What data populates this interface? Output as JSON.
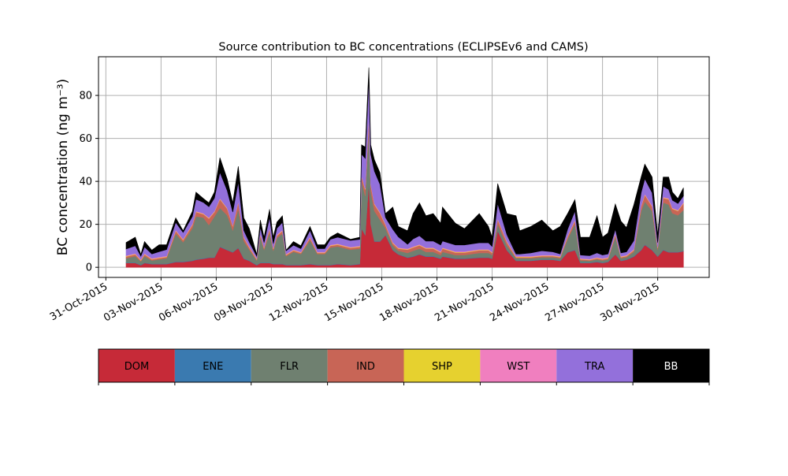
{
  "chart_data": {
    "type": "area",
    "stacked": true,
    "title": "Source contribution to BC concentrations (ECLIPSEv6 and CAMS)",
    "ylabel": "BC concentration (ng m⁻³)",
    "xlabel": "",
    "x_unit": "days since 31-Oct-2015",
    "xlim": [
      -0.4,
      32.8
    ],
    "ylim": [
      -4.7,
      98
    ],
    "grid": true,
    "y_ticks": [
      0,
      20,
      40,
      60,
      80
    ],
    "x_ticks": [
      {
        "day": 0,
        "label": "31-Oct-2015"
      },
      {
        "day": 3,
        "label": "03-Nov-2015"
      },
      {
        "day": 6,
        "label": "06-Nov-2015"
      },
      {
        "day": 9,
        "label": "09-Nov-2015"
      },
      {
        "day": 12,
        "label": "12-Nov-2015"
      },
      {
        "day": 15,
        "label": "15-Nov-2015"
      },
      {
        "day": 18,
        "label": "18-Nov-2015"
      },
      {
        "day": 21,
        "label": "21-Nov-2015"
      },
      {
        "day": 24,
        "label": "24-Nov-2015"
      },
      {
        "day": 27,
        "label": "27-Nov-2015"
      },
      {
        "day": 30,
        "label": "30-Nov-2015"
      }
    ],
    "x": [
      1.1,
      1.6,
      1.9,
      2.1,
      2.5,
      2.9,
      3.3,
      3.8,
      4.2,
      4.7,
      4.9,
      5.3,
      5.6,
      5.9,
      6.2,
      6.6,
      6.9,
      7.2,
      7.5,
      7.8,
      8.2,
      8.4,
      8.6,
      8.9,
      9.1,
      9.3,
      9.6,
      9.8,
      10.2,
      10.6,
      11.1,
      11.5,
      11.9,
      12.2,
      12.6,
      13.3,
      13.8,
      13.9,
      14.1,
      14.3,
      14.4,
      14.6,
      14.9,
      15.2,
      15.6,
      15.9,
      16.4,
      16.7,
      17.05,
      17.4,
      17.8,
      18.2,
      18.3,
      19.0,
      19.5,
      20.3,
      20.8,
      21.0,
      21.3,
      21.8,
      22.3,
      22.5,
      23.1,
      23.7,
      24.3,
      24.7,
      25.1,
      25.5,
      25.8,
      26.3,
      26.7,
      27.0,
      27.3,
      27.7,
      28.0,
      28.3,
      28.7,
      29.1,
      29.3,
      29.7,
      30.0,
      30.3,
      30.6,
      30.8,
      31.1,
      31.4
    ],
    "series": [
      {
        "name": "DOM",
        "color": "#c62a38",
        "values": [
          2,
          2,
          1,
          2,
          1.5,
          1.5,
          1.5,
          2.5,
          2.5,
          3,
          3.5,
          4,
          4.5,
          4.5,
          9.5,
          8,
          7,
          9,
          4,
          3,
          1,
          2,
          2,
          2,
          1.5,
          1.5,
          1.5,
          1,
          1,
          1,
          1.5,
          1,
          1,
          1,
          1.5,
          1,
          1.5,
          18,
          15,
          40,
          20,
          12,
          12,
          15,
          8,
          6,
          4.5,
          5,
          6,
          5,
          5,
          4,
          5,
          4,
          4,
          4.5,
          4.5,
          4,
          17,
          8,
          3,
          3,
          3,
          3.5,
          3.5,
          3,
          7,
          8,
          2,
          2,
          2.5,
          2,
          2.5,
          6,
          3,
          3.5,
          5,
          8,
          10.5,
          8,
          5,
          8,
          7,
          7,
          7,
          7.5
        ]
      },
      {
        "name": "ENE",
        "color": "#3a7ab0",
        "values": [
          0.2,
          0.2,
          0.2,
          0.2,
          0.2,
          0.2,
          0.2,
          0.2,
          0.2,
          0.2,
          0.2,
          0.2,
          0.2,
          0.2,
          0.2,
          0.2,
          0.2,
          0.2,
          0.2,
          0.2,
          0.2,
          0.2,
          0.2,
          0.2,
          0.2,
          0.2,
          0.2,
          0.2,
          0.2,
          0.2,
          0.2,
          0.2,
          0.2,
          0.2,
          0.2,
          0.2,
          0.2,
          0.2,
          0.2,
          0.2,
          0.2,
          0.2,
          0.2,
          0.2,
          0.2,
          0.2,
          0.2,
          0.2,
          0.2,
          0.2,
          0.2,
          0.2,
          0.2,
          0.2,
          0.2,
          0.2,
          0.2,
          0.2,
          0.2,
          0.2,
          0.2,
          0.2,
          0.2,
          0.2,
          0.2,
          0.2,
          0.2,
          0.2,
          0.2,
          0.2,
          0.2,
          0.2,
          0.2,
          0.2,
          0.2,
          0.2,
          0.2,
          0.2,
          0.2,
          0.2,
          0.2,
          0.2,
          0.2,
          0.2,
          0.2,
          0.2
        ]
      },
      {
        "name": "FLR",
        "color": "#6f8070",
        "values": [
          2,
          3,
          1.5,
          3,
          1.5,
          2,
          2.5,
          13,
          9,
          15,
          20,
          19,
          15,
          19,
          18,
          16,
          10,
          18,
          8,
          5,
          2,
          12,
          6,
          14,
          6,
          12,
          14,
          4,
          6,
          5,
          11,
          5,
          5,
          8,
          8,
          7,
          7,
          22,
          18,
          25,
          15,
          14,
          10,
          3,
          2,
          1.5,
          2,
          2.5,
          2.5,
          2,
          2,
          1.5,
          2,
          1.5,
          1.5,
          2,
          2,
          1.5,
          3,
          2,
          1,
          1,
          1,
          1,
          1,
          1,
          6,
          12,
          1,
          0.8,
          1,
          1,
          1,
          8,
          1,
          1,
          2,
          18,
          20,
          18,
          3,
          22,
          22,
          18,
          17,
          19
        ]
      },
      {
        "name": "IND",
        "color": "#c86556",
        "values": [
          0.8,
          0.8,
          0.5,
          0.8,
          0.5,
          0.6,
          0.6,
          1.2,
          1,
          1.5,
          2,
          1.5,
          3,
          2,
          4,
          3,
          2,
          3,
          1.5,
          1,
          0.5,
          1,
          0.8,
          1.5,
          0.8,
          1,
          1.2,
          0.5,
          0.6,
          0.5,
          1,
          0.5,
          0.5,
          0.8,
          0.8,
          0.8,
          0.8,
          2,
          3,
          5,
          3,
          3,
          3,
          1.5,
          1,
          1,
          1.5,
          1.5,
          1.5,
          1.5,
          1.5,
          1.2,
          1.5,
          1.2,
          1.2,
          1.2,
          1.2,
          1,
          2,
          1.5,
          0.5,
          0.5,
          0.5,
          0.5,
          0.5,
          0.5,
          1,
          1.5,
          0.5,
          0.4,
          0.5,
          0.5,
          0.5,
          1,
          0.5,
          0.5,
          0.7,
          2,
          3,
          2,
          0.8,
          2,
          2.5,
          2,
          2,
          3
        ]
      },
      {
        "name": "SHP",
        "color": "#e6d12f",
        "values": [
          0.2,
          0.2,
          0.2,
          0.2,
          0.2,
          0.2,
          0.2,
          0.2,
          0.2,
          0.2,
          0.2,
          0.2,
          0.2,
          0.2,
          0.2,
          0.2,
          0.2,
          0.2,
          0.2,
          0.2,
          0.2,
          0.2,
          0.2,
          0.2,
          0.2,
          0.2,
          0.2,
          0.2,
          0.2,
          0.2,
          0.2,
          0.2,
          0.2,
          0.2,
          0.2,
          0.2,
          0.2,
          0.2,
          0.2,
          0.2,
          0.2,
          0.2,
          0.2,
          0.2,
          0.2,
          0.2,
          0.2,
          0.2,
          0.2,
          0.2,
          0.2,
          0.2,
          0.2,
          0.2,
          0.2,
          0.2,
          0.2,
          0.2,
          0.2,
          0.2,
          0.2,
          0.2,
          0.2,
          0.2,
          0.2,
          0.2,
          0.2,
          0.2,
          0.2,
          0.2,
          0.2,
          0.2,
          0.2,
          0.2,
          0.2,
          0.2,
          0.2,
          0.2,
          0.2,
          0.2,
          0.2,
          0.2,
          0.2,
          0.2,
          0.2,
          0.2
        ]
      },
      {
        "name": "WST",
        "color": "#f07fbf",
        "values": [
          0.3,
          0.3,
          0.3,
          0.3,
          0.3,
          0.3,
          0.3,
          0.3,
          0.3,
          0.3,
          0.3,
          0.3,
          0.3,
          0.3,
          0.3,
          0.3,
          0.3,
          0.3,
          0.3,
          0.3,
          0.3,
          0.3,
          0.3,
          0.3,
          0.3,
          0.3,
          0.3,
          0.3,
          0.3,
          0.3,
          0.3,
          0.3,
          0.3,
          0.3,
          0.3,
          0.3,
          0.3,
          0.3,
          0.3,
          0.3,
          0.3,
          0.3,
          0.3,
          0.3,
          0.3,
          0.3,
          0.3,
          0.3,
          0.3,
          0.3,
          0.3,
          0.3,
          0.3,
          0.3,
          0.3,
          0.3,
          0.3,
          0.3,
          0.3,
          0.3,
          0.3,
          0.3,
          0.3,
          0.3,
          0.3,
          0.3,
          0.3,
          0.3,
          0.3,
          0.3,
          0.3,
          0.3,
          0.3,
          0.3,
          0.3,
          0.3,
          0.3,
          0.3,
          0.3,
          0.3,
          0.3,
          0.3,
          0.3,
          0.3,
          0.3,
          0.3
        ]
      },
      {
        "name": "TRA",
        "color": "#9370db",
        "values": [
          3,
          3.5,
          1.5,
          3,
          2,
          2.5,
          3,
          3.5,
          3,
          3.5,
          5.5,
          5,
          5,
          6,
          12,
          8,
          6,
          9,
          3,
          2,
          1,
          3,
          2,
          5,
          2,
          3,
          3.5,
          1.5,
          2,
          1.5,
          3,
          1.5,
          1.5,
          2.5,
          3,
          3,
          3,
          10,
          14,
          17,
          14,
          15,
          13,
          3,
          6,
          5,
          2,
          3.5,
          4,
          3,
          3,
          3,
          3,
          3,
          3,
          3,
          3,
          2.5,
          7,
          3,
          1,
          1,
          1.5,
          2,
          1.5,
          1,
          3,
          4,
          1.5,
          1.5,
          2,
          1.5,
          1.5,
          2,
          1.5,
          1.5,
          4,
          6,
          7,
          6,
          2,
          5,
          4,
          3.5,
          3,
          3
        ]
      },
      {
        "name": "BB",
        "color": "#000000",
        "values": [
          3,
          4,
          0.8,
          2.5,
          1.8,
          3.2,
          2.2,
          2.1,
          0.8,
          2.3,
          3.3,
          1.8,
          1.8,
          2.8,
          6.8,
          5.3,
          4.3,
          7.3,
          5.8,
          6.3,
          0.8,
          3.3,
          2.5,
          3.8,
          3,
          2.8,
          3.1,
          0.3,
          1.7,
          1.3,
          1.8,
          1.8,
          1.8,
          1,
          2,
          0.5,
          1,
          4.3,
          5.3,
          5.3,
          4.3,
          5.3,
          5.3,
          1.8,
          10.3,
          4.8,
          6.3,
          11.8,
          15.3,
          11.8,
          12.8,
          10.1,
          15.8,
          10.1,
          7.6,
          13.6,
          7.6,
          4.3,
          9.3,
          9.8,
          17.8,
          10.8,
          12.3,
          14.3,
          9.8,
          12.8,
          7.3,
          5.3,
          8.3,
          8.6,
          17.3,
          8.3,
          9.8,
          11.8,
          14.8,
          11.3,
          16.6,
          7.3,
          6.8,
          7.3,
          3.5,
          4.3,
          5.8,
          3.8,
          2.3,
          3.8
        ]
      }
    ],
    "legend": {
      "placement": "below-plot colorbar",
      "entries": [
        "DOM",
        "ENE",
        "FLR",
        "IND",
        "SHP",
        "WST",
        "TRA",
        "BB"
      ]
    }
  }
}
